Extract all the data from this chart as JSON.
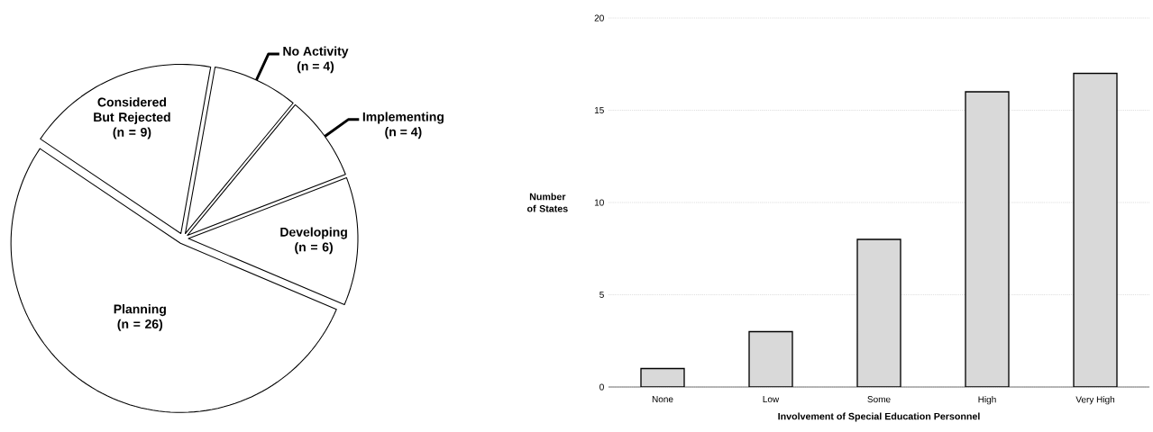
{
  "chart_data": [
    {
      "type": "pie",
      "categories": [
        "Considered But Rejected",
        "No Activity",
        "Implementing",
        "Developing",
        "Planning"
      ],
      "values": [
        9,
        4,
        4,
        6,
        26
      ],
      "value_labels": [
        "(n = 9)",
        "(n = 4)",
        "(n = 4)",
        "(n = 6)",
        "(n = 26)"
      ],
      "colors": [
        "#ffffff",
        "#ffffff",
        "#ffffff",
        "#ffffff",
        "#ffffff"
      ]
    },
    {
      "type": "bar",
      "xlabel": "Involvement of Special Education Personnel",
      "ylabel": "Number of States",
      "categories": [
        "None",
        "Low",
        "Some",
        "High",
        "Very High"
      ],
      "values": [
        1,
        3,
        8,
        16,
        17
      ],
      "color": "#d9d9d9",
      "ylim": [
        0,
        20
      ],
      "yticks": [
        0,
        5,
        10,
        15,
        20
      ],
      "grid": "y"
    }
  ]
}
